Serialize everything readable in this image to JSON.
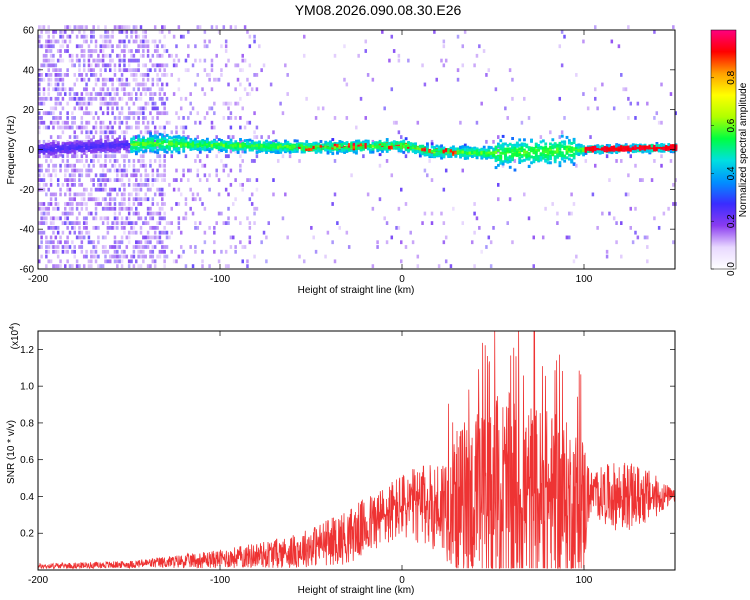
{
  "title": "YM08.2026.090.08.30.E26",
  "chart_data": [
    {
      "type": "heatmap",
      "name": "spectrogram",
      "xlabel": "Height of straight line (km)",
      "ylabel": "Frequency (Hz)",
      "xlim": [
        -200,
        150
      ],
      "ylim": [
        -60,
        60
      ],
      "xticks": [
        -200,
        -100,
        0,
        100
      ],
      "yticks": [
        -60,
        -40,
        -20,
        0,
        20,
        40,
        60
      ],
      "colorbar": {
        "label": "Normalized spectral amplitude",
        "range": [
          0.0,
          1.0
        ],
        "ticks": [
          "0.0",
          "0.2",
          "0.4",
          "0.6",
          "0.8"
        ],
        "colormap": [
          "#ffffff",
          "#e8d8ff",
          "#8a3cf0",
          "#3a2cff",
          "#0090ff",
          "#00e0e0",
          "#00ff40",
          "#b0ff00",
          "#ffff00",
          "#ffa000",
          "#ff0000",
          "#ff0080"
        ]
      },
      "ridge": [
        {
          "x": -200,
          "f": 0
        },
        {
          "x": -140,
          "f": 3
        },
        {
          "x": -100,
          "f": 2
        },
        {
          "x": -50,
          "f": 1
        },
        {
          "x": 0,
          "f": 2
        },
        {
          "x": 15,
          "f": -1
        },
        {
          "x": 50,
          "f": -2
        },
        {
          "x": 80,
          "f": -1
        },
        {
          "x": 100,
          "f": 0
        },
        {
          "x": 150,
          "f": 1
        }
      ]
    },
    {
      "type": "line",
      "name": "snr",
      "xlabel": "Height of straight line (km)",
      "ylabel": "SNR (10 * v/v)",
      "multiplier": "(x10",
      "multiplier_exp": "4",
      "xlim": [
        -200,
        150
      ],
      "ylim": [
        0,
        1.3
      ],
      "xticks": [
        -200,
        -100,
        0,
        100
      ],
      "yticks": [
        "0.2",
        "0.4",
        "0.6",
        "0.8",
        "1.0",
        "1.2"
      ],
      "color": "#ee3333",
      "envelope": [
        {
          "x": -200,
          "base": 0.02,
          "amp": 0.015
        },
        {
          "x": -150,
          "base": 0.03,
          "amp": 0.02
        },
        {
          "x": -100,
          "base": 0.06,
          "amp": 0.05
        },
        {
          "x": -60,
          "base": 0.1,
          "amp": 0.09
        },
        {
          "x": -30,
          "base": 0.18,
          "amp": 0.15
        },
        {
          "x": 0,
          "base": 0.35,
          "amp": 0.18
        },
        {
          "x": 20,
          "base": 0.35,
          "amp": 0.25
        },
        {
          "x": 35,
          "base": 0.38,
          "amp": 0.45
        },
        {
          "x": 55,
          "base": 0.38,
          "amp": 0.6
        },
        {
          "x": 80,
          "base": 0.38,
          "amp": 0.5
        },
        {
          "x": 100,
          "base": 0.35,
          "amp": 0.4
        },
        {
          "x": 103,
          "base": 0.42,
          "amp": 0.12
        },
        {
          "x": 120,
          "base": 0.4,
          "amp": 0.2
        },
        {
          "x": 135,
          "base": 0.4,
          "amp": 0.15
        },
        {
          "x": 150,
          "base": 0.4,
          "amp": 0.03
        }
      ]
    }
  ]
}
